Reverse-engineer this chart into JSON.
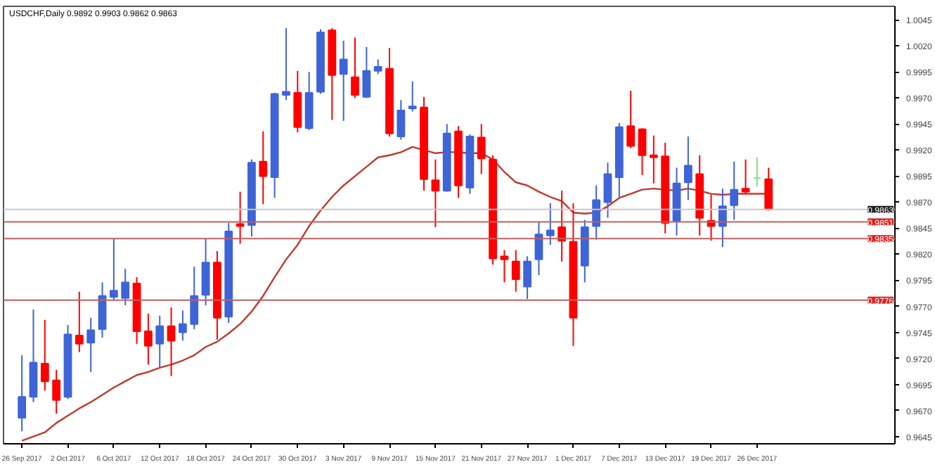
{
  "chart_data": {
    "type": "candlestick",
    "title": "USDCHF,Daily  0.9892 0.9903 0.9862 0.9863",
    "categories": [
      "26 Sep 2017",
      null,
      null,
      null,
      "2 Oct 2017",
      null,
      null,
      null,
      "6 Oct 2017",
      null,
      null,
      null,
      "12 Oct 2017",
      null,
      null,
      null,
      "18 Oct 2017",
      null,
      null,
      null,
      "24 Oct 2017",
      null,
      null,
      null,
      "30 Oct 2017",
      null,
      null,
      null,
      "3 Nov 2017",
      null,
      null,
      null,
      "9 Nov 2017",
      null,
      null,
      null,
      "15 Nov 2017",
      null,
      null,
      null,
      "21 Nov 2017",
      null,
      null,
      null,
      "27 Nov 2017",
      null,
      null,
      null,
      "1 Dec 2017",
      null,
      null,
      null,
      "7 Dec 2017",
      null,
      null,
      null,
      "13 Dec 2017",
      null,
      null,
      null,
      "19 Dec 2017",
      null,
      null,
      null,
      "26 Dec 2017",
      null
    ],
    "ohlc": [
      [
        0.9663,
        0.9723,
        0.965,
        0.9683
      ],
      [
        0.9683,
        0.9767,
        0.9678,
        0.9716
      ],
      [
        0.9715,
        0.9757,
        0.9689,
        0.9698
      ],
      [
        0.9699,
        0.9709,
        0.9667,
        0.968
      ],
      [
        0.9683,
        0.9752,
        0.9681,
        0.9743
      ],
      [
        0.9742,
        0.9784,
        0.9726,
        0.9734
      ],
      [
        0.9735,
        0.9759,
        0.9707,
        0.9747
      ],
      [
        0.9748,
        0.9793,
        0.974,
        0.978
      ],
      [
        0.9779,
        0.9835,
        0.9776,
        0.9785
      ],
      [
        0.9778,
        0.9806,
        0.9771,
        0.9793
      ],
      [
        0.9792,
        0.9798,
        0.9734,
        0.9746
      ],
      [
        0.9746,
        0.9763,
        0.9714,
        0.9732
      ],
      [
        0.9734,
        0.9761,
        0.9711,
        0.9751
      ],
      [
        0.9751,
        0.9769,
        0.9703,
        0.9737
      ],
      [
        0.9745,
        0.9766,
        0.9737,
        0.9753
      ],
      [
        0.9753,
        0.9808,
        0.9748,
        0.978
      ],
      [
        0.9781,
        0.9835,
        0.9771,
        0.9812
      ],
      [
        0.9812,
        0.9823,
        0.9738,
        0.9759
      ],
      [
        0.976,
        0.985,
        0.9754,
        0.9842
      ],
      [
        0.9849,
        0.988,
        0.983,
        0.9847
      ],
      [
        0.9848,
        0.9911,
        0.9837,
        0.9908
      ],
      [
        0.9909,
        0.9938,
        0.9868,
        0.9895
      ],
      [
        0.9894,
        0.9975,
        0.9874,
        0.9974
      ],
      [
        0.9973,
        1.0037,
        0.9968,
        0.9976
      ],
      [
        0.9975,
        0.9996,
        0.9937,
        0.9942
      ],
      [
        0.9941,
        0.9995,
        0.9939,
        0.9975
      ],
      [
        0.9976,
        1.0036,
        0.9974,
        1.0033
      ],
      [
        1.0035,
        1.0037,
        0.9949,
        0.9992
      ],
      [
        0.9993,
        1.0025,
        0.9948,
        1.0007
      ],
      [
        0.999,
        1.0028,
        0.997,
        0.9973
      ],
      [
        0.9971,
        1.0019,
        0.997,
        0.9996
      ],
      [
        0.9996,
        1.0007,
        0.9993,
        1.0
      ],
      [
        0.9998,
        1.0018,
        0.9933,
        0.9936
      ],
      [
        0.9933,
        0.9968,
        0.993,
        0.9958
      ],
      [
        0.996,
        0.9986,
        0.9957,
        0.9962
      ],
      [
        0.9961,
        0.9971,
        0.9881,
        0.9892
      ],
      [
        0.9891,
        0.9911,
        0.9846,
        0.9881
      ],
      [
        0.9881,
        0.9945,
        0.988,
        0.9936
      ],
      [
        0.9938,
        0.9943,
        0.9874,
        0.9886
      ],
      [
        0.9884,
        0.9935,
        0.9878,
        0.9933
      ],
      [
        0.9932,
        0.9945,
        0.9897,
        0.9912
      ],
      [
        0.9911,
        0.9915,
        0.981,
        0.9816
      ],
      [
        0.9818,
        0.9824,
        0.9793,
        0.9815
      ],
      [
        0.9813,
        0.9824,
        0.9784,
        0.9796
      ],
      [
        0.9789,
        0.9818,
        0.9777,
        0.9813
      ],
      [
        0.9815,
        0.9851,
        0.98,
        0.9839
      ],
      [
        0.9838,
        0.9869,
        0.9829,
        0.9843
      ],
      [
        0.9846,
        0.9881,
        0.9813,
        0.9833
      ],
      [
        0.9832,
        0.9869,
        0.9732,
        0.9759
      ],
      [
        0.9809,
        0.9853,
        0.9793,
        0.9846
      ],
      [
        0.9847,
        0.9886,
        0.9834,
        0.9872
      ],
      [
        0.987,
        0.9908,
        0.9855,
        0.9897
      ],
      [
        0.9894,
        0.9946,
        0.9875,
        0.9942
      ],
      [
        0.9943,
        0.9977,
        0.9922,
        0.9924
      ],
      [
        0.994,
        0.9941,
        0.9896,
        0.9915
      ],
      [
        0.9915,
        0.9934,
        0.9888,
        0.9913
      ],
      [
        0.9914,
        0.9927,
        0.984,
        0.985
      ],
      [
        0.9852,
        0.9903,
        0.9838,
        0.9888
      ],
      [
        0.9889,
        0.9933,
        0.9872,
        0.9905
      ],
      [
        0.9897,
        0.9915,
        0.9838,
        0.9855
      ],
      [
        0.9852,
        0.9877,
        0.9833,
        0.9847
      ],
      [
        0.9847,
        0.9883,
        0.9827,
        0.9866
      ],
      [
        0.9867,
        0.9909,
        0.9853,
        0.9882
      ],
      [
        0.9883,
        0.9911,
        0.9878,
        0.988
      ],
      [
        0.9893,
        0.9913,
        0.9885,
        0.9893
      ],
      [
        0.9892,
        0.9903,
        0.9862,
        0.9863
      ]
    ],
    "colors": [
      "#3e64d8",
      "#3e64d8",
      "#ff0000",
      "#ff0000",
      "#3e64d8",
      "#ff0000",
      "#3e64d8",
      "#3e64d8",
      "#3e64d8",
      "#3e64d8",
      "#ff0000",
      "#ff0000",
      "#3e64d8",
      "#ff0000",
      "#3e64d8",
      "#3e64d8",
      "#3e64d8",
      "#ff0000",
      "#3e64d8",
      "#ff0000",
      "#3e64d8",
      "#ff0000",
      "#3e64d8",
      "#3e64d8",
      "#ff0000",
      "#3e64d8",
      "#3e64d8",
      "#ff0000",
      "#3e64d8",
      "#ff0000",
      "#3e64d8",
      "#3e64d8",
      "#ff0000",
      "#3e64d8",
      "#3e64d8",
      "#ff0000",
      "#ff0000",
      "#3e64d8",
      "#ff0000",
      "#3e64d8",
      "#ff0000",
      "#ff0000",
      "#ff0000",
      "#ff0000",
      "#3e64d8",
      "#3e64d8",
      "#3e64d8",
      "#ff0000",
      "#ff0000",
      "#3e64d8",
      "#3e64d8",
      "#3e64d8",
      "#3e64d8",
      "#ff0000",
      "#ff0000",
      "#ff0000",
      "#ff0000",
      "#3e64d8",
      "#3e64d8",
      "#ff0000",
      "#ff0000",
      "#3e64d8",
      "#3e64d8",
      "#ff0000",
      "#7fe07f",
      "#ff0000"
    ],
    "series": [
      {
        "type": "line",
        "color": "#c0392b",
        "values": [
          0.9641,
          0.9645,
          0.9649,
          0.9658,
          0.9665,
          0.9672,
          0.9678,
          0.9685,
          0.9692,
          0.9698,
          0.9704,
          0.9707,
          0.9711,
          0.9714,
          0.9718,
          0.9723,
          0.9731,
          0.9736,
          0.9744,
          0.9753,
          0.9765,
          0.978,
          0.9798,
          0.9815,
          0.9829,
          0.9847,
          0.9862,
          0.9875,
          0.9886,
          0.9895,
          0.9904,
          0.9913,
          0.9915,
          0.9918,
          0.9923,
          0.992,
          0.9917,
          0.9918,
          0.9918,
          0.9917,
          0.9917,
          0.9911,
          0.9899,
          0.9889,
          0.9886,
          0.988,
          0.9875,
          0.9871,
          0.986,
          0.9859,
          0.986,
          0.9866,
          0.9874,
          0.9878,
          0.9882,
          0.9883,
          0.9882,
          0.9881,
          0.9883,
          0.9881,
          0.9878,
          0.9877,
          0.9878,
          0.9878,
          0.9878,
          0.9878
        ]
      }
    ],
    "ylim": [
      0.9638,
      1.0058
    ],
    "yticks": [
      1.0045,
      {
        "value": 1.002,
        "label": "1.0020"
      },
      0.9995,
      {
        "value": 0.997,
        "label": "0.9970"
      },
      0.9945,
      {
        "value": 0.992,
        "label": "0.9920"
      },
      0.9895,
      {
        "value": 0.987,
        "label": "0.9870"
      },
      0.9845,
      {
        "value": 0.982,
        "label": "0.9820"
      },
      0.9795,
      {
        "value": 0.977,
        "label": "0.9770"
      },
      0.9745,
      {
        "value": 0.972,
        "label": "0.9720"
      },
      0.9695,
      {
        "value": 0.967,
        "label": "0.9670"
      },
      0.9645
    ],
    "ref_lines": [
      {
        "axis": "y",
        "value": 0.9863,
        "label": "0.9863",
        "color": "#c8c8c8"
      },
      {
        "axis": "y",
        "value": 0.9851,
        "label": "0.9851",
        "color": "#c06060"
      },
      {
        "axis": "y",
        "value": 0.9835,
        "label": "0.9835",
        "color": "#c06060"
      },
      {
        "axis": "y",
        "value": 0.9776,
        "label": "0.9776",
        "color": "#c06060"
      }
    ],
    "grid": false
  }
}
